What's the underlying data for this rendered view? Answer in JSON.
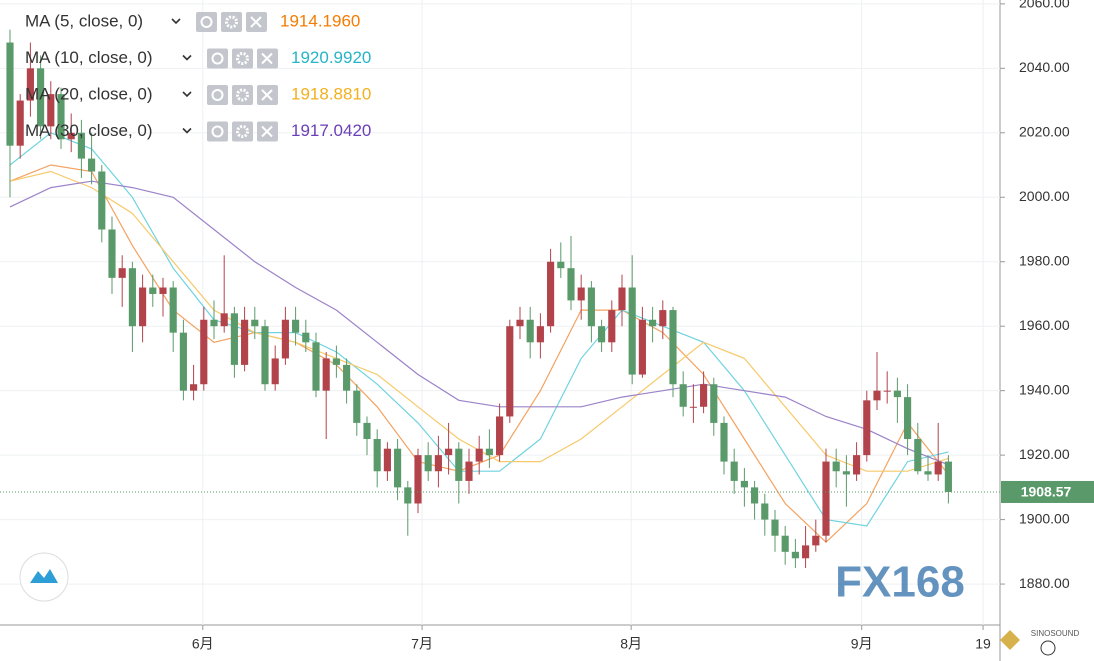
{
  "chart_data": {
    "type": "candlestick",
    "up_color": "#b2434b",
    "down_color": "#5a9a6a",
    "grid": true,
    "xlim": [
      -0.98,
      97.06
    ],
    "xticks": [
      {
        "value": 18.9,
        "label": "6月"
      },
      {
        "value": 40.4,
        "label": "7月"
      },
      {
        "value": 60.9,
        "label": "8月"
      },
      {
        "value": 83.5,
        "label": "9月"
      },
      {
        "value": 95.4,
        "label": "19"
      }
    ],
    "ylim": [
      1867.3,
      2061.2
    ],
    "yticks": [
      {
        "value": 1880,
        "label": "1880.00"
      },
      {
        "value": 1900,
        "label": "1900.00"
      },
      {
        "value": 1920,
        "label": "1920.00"
      },
      {
        "value": 1940,
        "label": "1940.00"
      },
      {
        "value": 1960,
        "label": "1960.00"
      },
      {
        "value": 1980,
        "label": "1980.00"
      },
      {
        "value": 2000,
        "label": "2000.00"
      },
      {
        "value": 2020,
        "label": "2020.00"
      },
      {
        "value": 2040,
        "label": "2040.00"
      },
      {
        "value": 2060,
        "label": "2060.00"
      }
    ],
    "last_price": 1908.57,
    "watermark": "FX168",
    "brand": "SINOSOUND",
    "ohlc": [
      [
        2048,
        2052,
        2000,
        2016
      ],
      [
        2016,
        2032,
        2012,
        2030
      ],
      [
        2030,
        2048,
        2025,
        2040
      ],
      [
        2040,
        2044,
        2018,
        2022
      ],
      [
        2022,
        2036,
        2018,
        2032
      ],
      [
        2032,
        2034,
        2015,
        2018
      ],
      [
        2018,
        2026,
        2014,
        2020
      ],
      [
        2020,
        2024,
        2006,
        2012
      ],
      [
        2012,
        2020,
        2004,
        2008
      ],
      [
        2008,
        2010,
        1986,
        1990
      ],
      [
        1990,
        1994,
        1970,
        1975
      ],
      [
        1975,
        1982,
        1966,
        1978
      ],
      [
        1978,
        1980,
        1952,
        1960
      ],
      [
        1960,
        1976,
        1955,
        1972
      ],
      [
        1972,
        1976,
        1966,
        1970
      ],
      [
        1970,
        1975,
        1963,
        1972
      ],
      [
        1972,
        1974,
        1952,
        1958
      ],
      [
        1958,
        1962,
        1937,
        1940
      ],
      [
        1940,
        1948,
        1937,
        1942
      ],
      [
        1942,
        1966,
        1940,
        1962
      ],
      [
        1962,
        1968,
        1956,
        1960
      ],
      [
        1960,
        1982,
        1958,
        1964
      ],
      [
        1964,
        1966,
        1944,
        1948
      ],
      [
        1948,
        1966,
        1946,
        1962
      ],
      [
        1962,
        1966,
        1956,
        1960
      ],
      [
        1960,
        1962,
        1940,
        1942
      ],
      [
        1942,
        1954,
        1940,
        1950
      ],
      [
        1950,
        1966,
        1948,
        1962
      ],
      [
        1962,
        1966,
        1954,
        1958
      ],
      [
        1958,
        1962,
        1952,
        1955
      ],
      [
        1955,
        1958,
        1938,
        1940
      ],
      [
        1940,
        1952,
        1925,
        1950
      ],
      [
        1950,
        1954,
        1944,
        1948
      ],
      [
        1948,
        1950,
        1936,
        1940
      ],
      [
        1940,
        1942,
        1926,
        1930
      ],
      [
        1930,
        1932,
        1920,
        1925
      ],
      [
        1925,
        1928,
        1910,
        1915
      ],
      [
        1915,
        1924,
        1912,
        1922
      ],
      [
        1922,
        1925,
        1906,
        1910
      ],
      [
        1910,
        1912,
        1895,
        1905
      ],
      [
        1905,
        1922,
        1902,
        1920
      ],
      [
        1920,
        1924,
        1912,
        1915
      ],
      [
        1915,
        1926,
        1910,
        1920
      ],
      [
        1920,
        1930,
        1914,
        1922
      ],
      [
        1922,
        1924,
        1905,
        1912
      ],
      [
        1912,
        1922,
        1908,
        1918
      ],
      [
        1918,
        1926,
        1914,
        1922
      ],
      [
        1922,
        1928,
        1916,
        1920
      ],
      [
        1920,
        1936,
        1918,
        1932
      ],
      [
        1932,
        1962,
        1930,
        1960
      ],
      [
        1960,
        1966,
        1956,
        1962
      ],
      [
        1962,
        1966,
        1950,
        1955
      ],
      [
        1955,
        1964,
        1950,
        1960
      ],
      [
        1960,
        1984,
        1958,
        1980
      ],
      [
        1980,
        1986,
        1975,
        1978
      ],
      [
        1978,
        1988,
        1965,
        1968
      ],
      [
        1968,
        1976,
        1962,
        1972
      ],
      [
        1972,
        1974,
        1955,
        1960
      ],
      [
        1960,
        1962,
        1952,
        1955
      ],
      [
        1955,
        1968,
        1952,
        1965
      ],
      [
        1965,
        1976,
        1960,
        1972
      ],
      [
        1972,
        1982,
        1942,
        1945
      ],
      [
        1945,
        1966,
        1944,
        1962
      ],
      [
        1962,
        1966,
        1955,
        1960
      ],
      [
        1960,
        1968,
        1956,
        1965
      ],
      [
        1965,
        1966,
        1938,
        1942
      ],
      [
        1942,
        1946,
        1932,
        1935
      ],
      [
        1935,
        1942,
        1930,
        1935
      ],
      [
        1935,
        1946,
        1933,
        1942
      ],
      [
        1942,
        1944,
        1926,
        1930
      ],
      [
        1930,
        1932,
        1914,
        1918
      ],
      [
        1918,
        1922,
        1908,
        1912
      ],
      [
        1912,
        1916,
        1904,
        1910
      ],
      [
        1910,
        1912,
        1900,
        1905
      ],
      [
        1905,
        1908,
        1895,
        1900
      ],
      [
        1900,
        1903,
        1890,
        1895
      ],
      [
        1895,
        1898,
        1886,
        1890
      ],
      [
        1890,
        1894,
        1885,
        1888
      ],
      [
        1888,
        1898,
        1885,
        1892
      ],
      [
        1892,
        1900,
        1890,
        1895
      ],
      [
        1895,
        1922,
        1893,
        1918
      ],
      [
        1918,
        1922,
        1910,
        1915
      ],
      [
        1915,
        1920,
        1904,
        1914
      ],
      [
        1914,
        1924,
        1912,
        1920
      ],
      [
        1920,
        1940,
        1918,
        1937
      ],
      [
        1937,
        1952,
        1934,
        1940
      ],
      [
        1940,
        1946,
        1936,
        1940
      ],
      [
        1940,
        1944,
        1930,
        1938
      ],
      [
        1938,
        1942,
        1920,
        1925
      ],
      [
        1925,
        1930,
        1914,
        1915
      ],
      [
        1915,
        1920,
        1912,
        1914
      ],
      [
        1914,
        1930,
        1912,
        1918
      ],
      [
        1918,
        1920,
        1905,
        1908.57
      ]
    ],
    "series": [
      {
        "name": "MA (5, close, 0)",
        "last_value_label": "1914.1960",
        "color": "#f57c00",
        "line_color": "#f4a261",
        "x": [
          0,
          4,
          8,
          12,
          16,
          20,
          24,
          28,
          32,
          36,
          40,
          44,
          48,
          52,
          56,
          60,
          64,
          68,
          72,
          76,
          80,
          84,
          88,
          92
        ],
        "values": [
          2005,
          2010,
          2008,
          1985,
          1965,
          1955,
          1958,
          1955,
          1948,
          1935,
          1918,
          1915,
          1920,
          1940,
          1965,
          1965,
          1958,
          1945,
          1925,
          1905,
          1893,
          1905,
          1930,
          1914
        ]
      },
      {
        "name": "MA (10, close, 0)",
        "last_value_label": "1920.9920",
        "color": "#26b5c6",
        "line_color": "#6fd3e0",
        "x": [
          0,
          4,
          8,
          12,
          16,
          20,
          24,
          28,
          32,
          36,
          40,
          44,
          48,
          52,
          56,
          60,
          64,
          68,
          72,
          76,
          80,
          84,
          88,
          92
        ],
        "values": [
          2010,
          2020,
          2015,
          2000,
          1978,
          1962,
          1958,
          1958,
          1952,
          1942,
          1930,
          1915,
          1915,
          1925,
          1950,
          1965,
          1960,
          1955,
          1940,
          1920,
          1900,
          1898,
          1918,
          1921
        ]
      },
      {
        "name": "MA (20, close, 0)",
        "last_value_label": "1918.8810",
        "color": "#f2b01e",
        "line_color": "#f7c96a",
        "x": [
          0,
          4,
          8,
          12,
          16,
          20,
          24,
          28,
          32,
          36,
          40,
          44,
          48,
          52,
          56,
          60,
          64,
          68,
          72,
          76,
          80,
          84,
          88,
          92
        ],
        "values": [
          2005,
          2008,
          2003,
          1995,
          1980,
          1965,
          1958,
          1955,
          1950,
          1945,
          1935,
          1925,
          1918,
          1918,
          1925,
          1935,
          1945,
          1955,
          1950,
          1935,
          1920,
          1915,
          1915,
          1919
        ]
      },
      {
        "name": "MA (30, close, 0)",
        "last_value_label": "1917.0420",
        "color": "#6a3fb5",
        "line_color": "#9b82c9",
        "x": [
          0,
          4,
          8,
          12,
          16,
          20,
          24,
          28,
          32,
          36,
          40,
          44,
          48,
          52,
          56,
          60,
          64,
          68,
          72,
          76,
          80,
          84,
          88,
          92
        ],
        "values": [
          1997,
          2003,
          2005,
          2003,
          2000,
          1990,
          1980,
          1972,
          1965,
          1955,
          1945,
          1937,
          1935,
          1935,
          1935,
          1938,
          1940,
          1942,
          1940,
          1938,
          1932,
          1928,
          1922,
          1917
        ]
      }
    ]
  }
}
